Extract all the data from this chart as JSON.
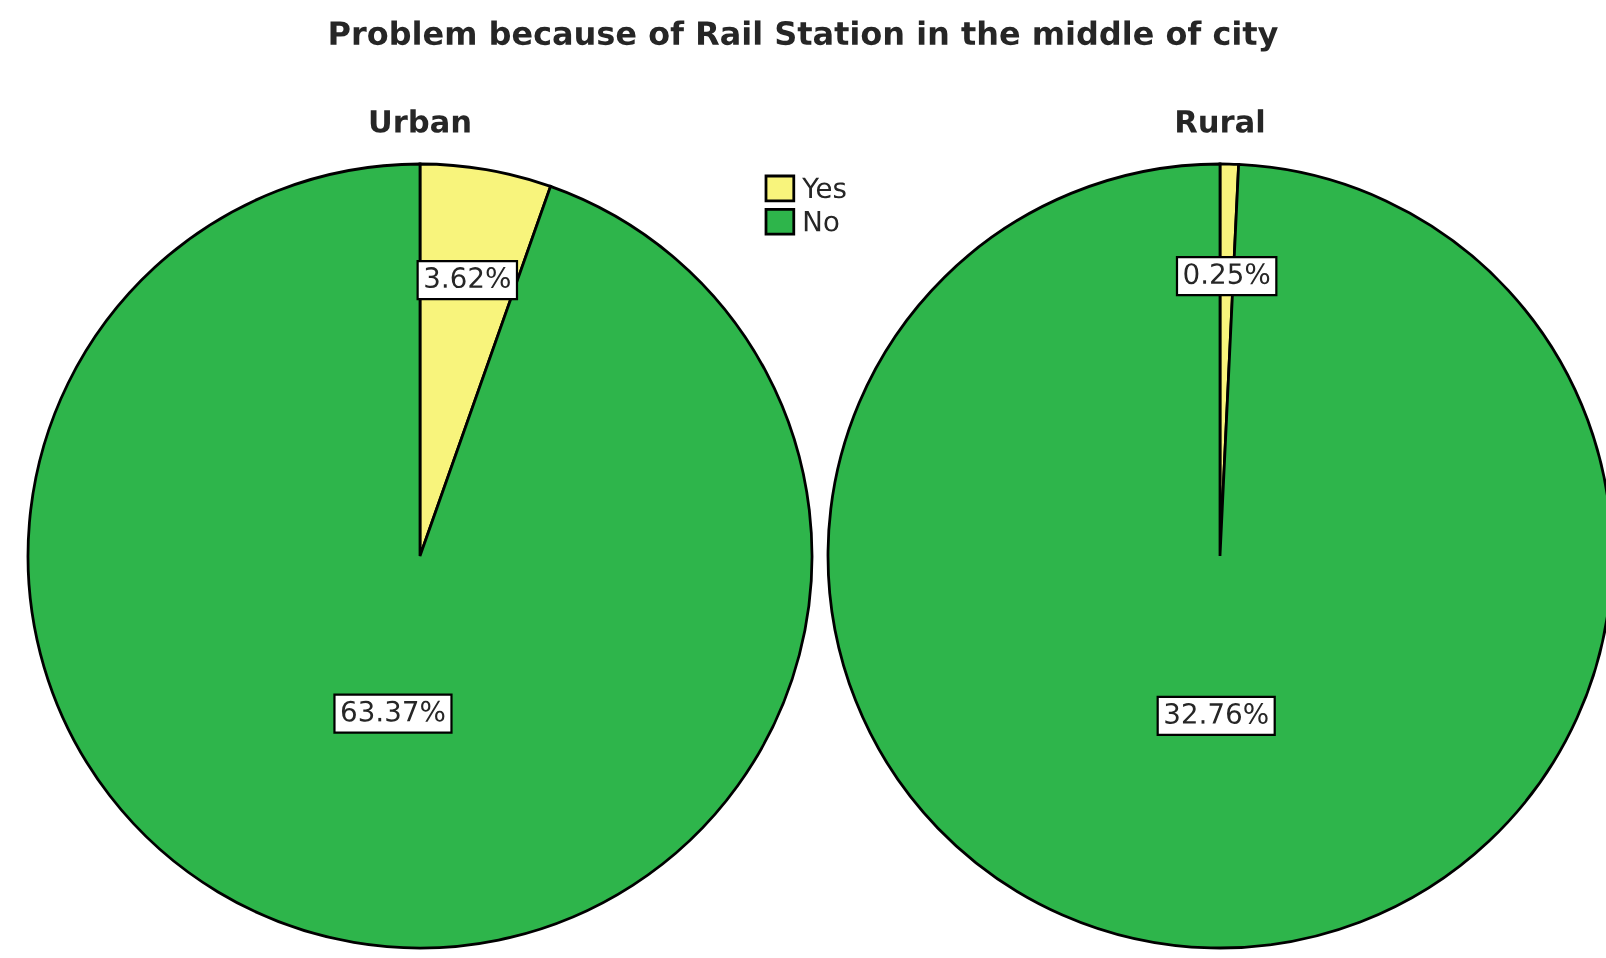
{
  "chart_data": [
    {
      "type": "pie",
      "title": "Problem because of Rail Station in the middle of city",
      "subtitle": "Urban",
      "categories": [
        "Yes",
        "No"
      ],
      "values": [
        3.62,
        63.37
      ],
      "colors": [
        "#f8f47c",
        "#2eb54b"
      ],
      "value_labels": [
        "3.62%",
        "63.37%"
      ],
      "legend": "top right"
    },
    {
      "type": "pie",
      "subtitle": "Rural",
      "values": [
        0.25,
        32.76
      ],
      "colors": [
        "#f8f47c",
        "#2eb54b"
      ],
      "value_labels": [
        "0.25%",
        "32.76%"
      ]
    }
  ]
}
